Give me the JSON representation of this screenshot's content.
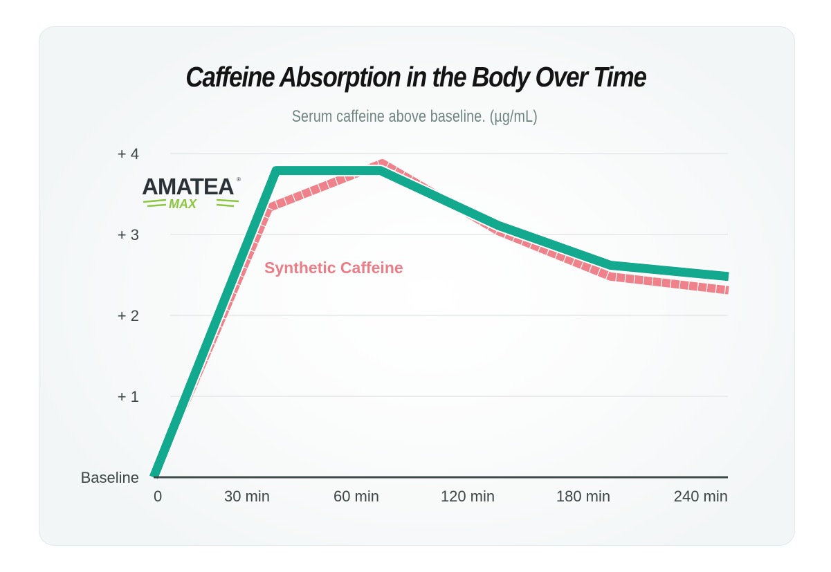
{
  "chart_data": {
    "type": "line",
    "title": "Caffeine Absorption in the Body Over Time",
    "subtitle": "Serum caffeine above baseline. (µg/mL)",
    "xlabel": "",
    "ylabel": "Serum caffeine above baseline (µg/mL)",
    "x_ticks": [
      {
        "value": 0,
        "label": "0"
      },
      {
        "value": 30,
        "label": "30 min"
      },
      {
        "value": 60,
        "label": "60 min"
      },
      {
        "value": 120,
        "label": "120 min"
      },
      {
        "value": 180,
        "label": "180 min"
      },
      {
        "value": 240,
        "label": "240 min"
      }
    ],
    "y_ticks": [
      {
        "value": 0,
        "label": "Baseline"
      },
      {
        "value": 1,
        "label": "+ 1"
      },
      {
        "value": 2,
        "label": "+ 2"
      },
      {
        "value": 3,
        "label": "+ 3"
      },
      {
        "value": 4,
        "label": "+ 4"
      }
    ],
    "ylim": [
      0,
      4
    ],
    "xlim": [
      0,
      255
    ],
    "grid": true,
    "series": [
      {
        "name": "Amatea Max",
        "label": "AMATEA MAX",
        "color": "#12a98e",
        "style": "solid",
        "x": [
          0,
          38,
          73,
          136,
          194,
          255
        ],
        "values": [
          0,
          3.79,
          3.79,
          3.11,
          2.62,
          2.48
        ]
      },
      {
        "name": "Synthetic Caffeine",
        "label": "Synthetic Caffeine",
        "color": "#ee8189",
        "style": "segmented",
        "x": [
          0,
          36,
          74,
          136,
          194,
          255
        ],
        "values": [
          0,
          3.33,
          3.88,
          3.04,
          2.48,
          2.31
        ]
      }
    ]
  },
  "logo": {
    "brand": "AMATEA",
    "registered": "®",
    "sub": "MAX",
    "brand_color": "#2a3237",
    "accent_color": "#8cc63f"
  },
  "colors": {
    "axis": "#3d4a48",
    "grid": "#e4e7e7",
    "title": "#141414",
    "subtitle": "#6f8580"
  }
}
